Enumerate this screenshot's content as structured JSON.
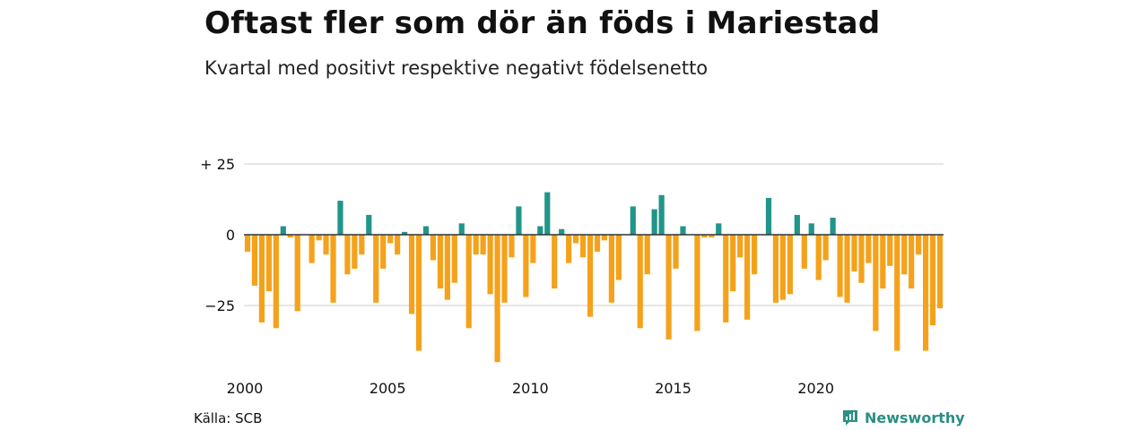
{
  "title": "Oftast fler som dör än föds i Mariestad",
  "subtitle": "Kvartal med positivt respektive negativt födelsenetto",
  "source": "Källa: SCB",
  "brand": "Newsworthy",
  "colors": {
    "positive": "#22958a",
    "negative": "#f4a21c",
    "gridline": "#dddddd",
    "zero_line": "#333333",
    "brand": "#2a8f86"
  },
  "chart_data": {
    "type": "bar",
    "title": "Oftast fler som dör än föds i Mariestad",
    "subtitle": "Kvartal med positivt respektive negativt födelsenetto",
    "xlabel": "",
    "ylabel": "",
    "x_tick_labels": [
      "2000",
      "2005",
      "2010",
      "2015",
      "2020"
    ],
    "x_tick_years": [
      2000,
      2005,
      2010,
      2015,
      2020
    ],
    "y_ticks": [
      {
        "value": 25,
        "label": "+ 25"
      },
      {
        "value": 0,
        "label": "0"
      },
      {
        "value": -25,
        "label": "−25"
      }
    ],
    "ylim": [
      -45,
      25
    ],
    "grid": true,
    "start_year": 2000,
    "periods_per_year": 4,
    "values": [
      -6,
      -18,
      -31,
      -20,
      -33,
      3,
      -1,
      -27,
      0,
      -10,
      -2,
      -7,
      -24,
      12,
      -14,
      -12,
      -7,
      7,
      -24,
      -12,
      -3,
      -7,
      1,
      -28,
      -41,
      3,
      -9,
      -19,
      -23,
      -17,
      4,
      -33,
      -7,
      -7,
      -21,
      -45,
      -24,
      -8,
      10,
      -22,
      -10,
      3,
      15,
      -19,
      2,
      -10,
      -3,
      -8,
      -29,
      -6,
      -2,
      -24,
      -16,
      0,
      10,
      -33,
      -14,
      9,
      14,
      -37,
      -12,
      3,
      0,
      -34,
      -1,
      -1,
      4,
      -31,
      -20,
      -8,
      -30,
      -14,
      0,
      13,
      -24,
      -23,
      -21,
      7,
      -12,
      4,
      -16,
      -9,
      6,
      -22,
      -24,
      -13,
      -17,
      -10,
      -34,
      -19,
      -11,
      -41,
      -14,
      -19,
      -7,
      -41,
      -32,
      -26
    ]
  }
}
